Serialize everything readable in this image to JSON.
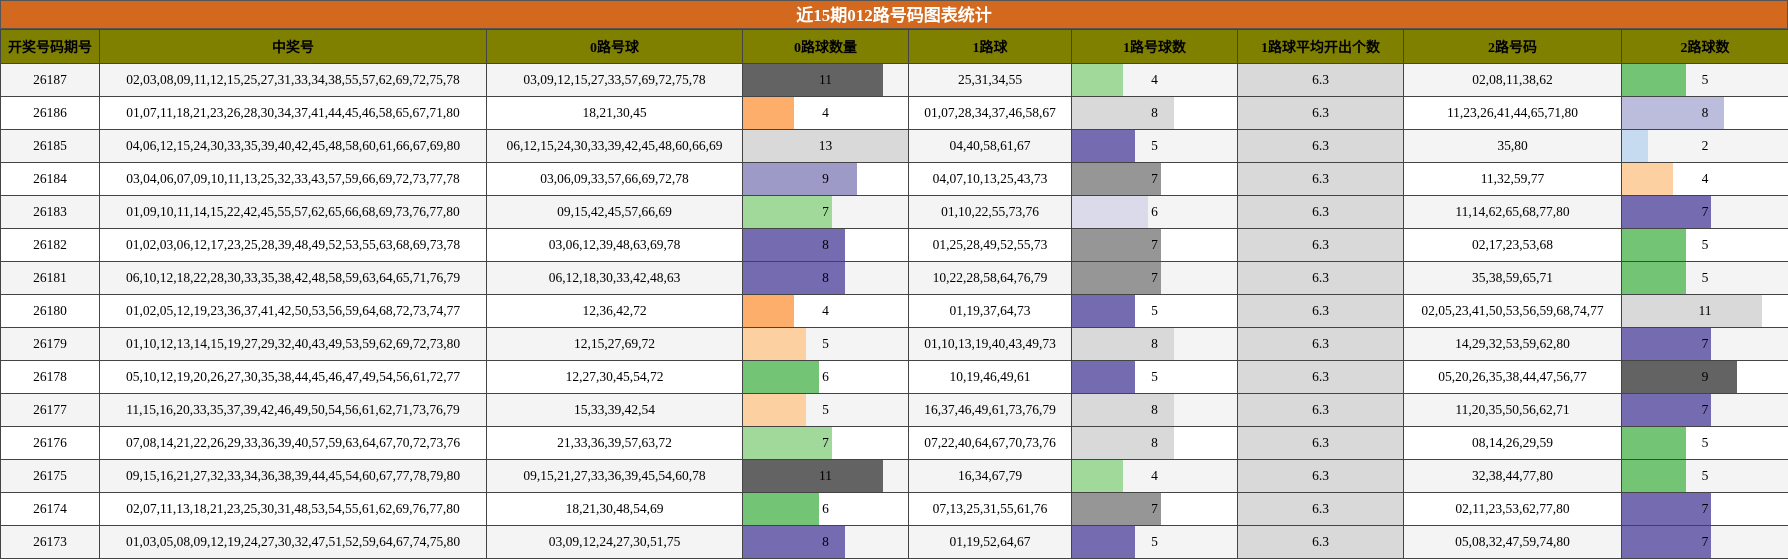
{
  "title": "近15期012路号码图表统计",
  "headers": [
    "开奖号码期号",
    "中奖号",
    "0路号球",
    "0路球数量",
    "1路球",
    "1路号球数",
    "1路球平均开出个数",
    "2路号码",
    "2路球数"
  ],
  "max_count": 13,
  "colors": {
    "header_bg": "#808000",
    "title_bg": "#d2691e",
    "avg_bg": "#d9d9d9",
    "count_2": "#c6dbef",
    "count_4_green": "#a1d99b",
    "count_4_orange": "#fdae6b",
    "count_5_peach": "#fdd0a2",
    "count_5_green": "#74c476",
    "count_5_purple": "#756bb1",
    "count_6_green": "#74c476",
    "count_6_lavender": "#dadaeb",
    "count_7_green": "#a1d99b",
    "count_7_gray": "#969696",
    "count_7_purple": "#756bb1",
    "count_8_purple": "#756bb1",
    "count_8_light_gray": "#d9d9d9",
    "count_8_lilac": "#bcbddc",
    "count_9_purple": "#9e9ac8",
    "count_9_dark": "#636363",
    "count_11_dark": "#636363",
    "count_11_light_gray": "#d9d9d9",
    "count_13": "#d9d9d9"
  },
  "rows": [
    {
      "period": "26187",
      "numbers": "02,03,08,09,11,12,15,25,27,31,33,34,38,55,57,62,69,72,75,78",
      "r0": "03,09,12,15,27,33,57,69,72,75,78",
      "r0_count": 11,
      "r0_color": "#636363",
      "r1": "25,31,34,55",
      "r1_count": 4,
      "r1_color": "#a1d99b",
      "avg": "6.3",
      "r2": "02,08,11,38,62",
      "r2_count": 5,
      "r2_color": "#74c476"
    },
    {
      "period": "26186",
      "numbers": "01,07,11,18,21,23,26,28,30,34,37,41,44,45,46,58,65,67,71,80",
      "r0": "18,21,30,45",
      "r0_count": 4,
      "r0_color": "#fdae6b",
      "r1": "01,07,28,34,37,46,58,67",
      "r1_count": 8,
      "r1_color": "#d9d9d9",
      "avg": "6.3",
      "r2": "11,23,26,41,44,65,71,80",
      "r2_count": 8,
      "r2_color": "#bcbddc"
    },
    {
      "period": "26185",
      "numbers": "04,06,12,15,24,30,33,35,39,40,42,45,48,58,60,61,66,67,69,80",
      "r0": "06,12,15,24,30,33,39,42,45,48,60,66,69",
      "r0_count": 13,
      "r0_color": "#d9d9d9",
      "r1": "04,40,58,61,67",
      "r1_count": 5,
      "r1_color": "#756bb1",
      "avg": "6.3",
      "r2": "35,80",
      "r2_count": 2,
      "r2_color": "#c6dbef"
    },
    {
      "period": "26184",
      "numbers": "03,04,06,07,09,10,11,13,25,32,33,43,57,59,66,69,72,73,77,78",
      "r0": "03,06,09,33,57,66,69,72,78",
      "r0_count": 9,
      "r0_color": "#9e9ac8",
      "r1": "04,07,10,13,25,43,73",
      "r1_count": 7,
      "r1_color": "#969696",
      "avg": "6.3",
      "r2": "11,32,59,77",
      "r2_count": 4,
      "r2_color": "#fdd0a2"
    },
    {
      "period": "26183",
      "numbers": "01,09,10,11,14,15,22,42,45,55,57,62,65,66,68,69,73,76,77,80",
      "r0": "09,15,42,45,57,66,69",
      "r0_count": 7,
      "r0_color": "#a1d99b",
      "r1": "01,10,22,55,73,76",
      "r1_count": 6,
      "r1_color": "#dadaeb",
      "avg": "6.3",
      "r2": "11,14,62,65,68,77,80",
      "r2_count": 7,
      "r2_color": "#756bb1"
    },
    {
      "period": "26182",
      "numbers": "01,02,03,06,12,17,23,25,28,39,48,49,52,53,55,63,68,69,73,78",
      "r0": "03,06,12,39,48,63,69,78",
      "r0_count": 8,
      "r0_color": "#756bb1",
      "r1": "01,25,28,49,52,55,73",
      "r1_count": 7,
      "r1_color": "#969696",
      "avg": "6.3",
      "r2": "02,17,23,53,68",
      "r2_count": 5,
      "r2_color": "#74c476"
    },
    {
      "period": "26181",
      "numbers": "06,10,12,18,22,28,30,33,35,38,42,48,58,59,63,64,65,71,76,79",
      "r0": "06,12,18,30,33,42,48,63",
      "r0_count": 8,
      "r0_color": "#756bb1",
      "r1": "10,22,28,58,64,76,79",
      "r1_count": 7,
      "r1_color": "#969696",
      "avg": "6.3",
      "r2": "35,38,59,65,71",
      "r2_count": 5,
      "r2_color": "#74c476"
    },
    {
      "period": "26180",
      "numbers": "01,02,05,12,19,23,36,37,41,42,50,53,56,59,64,68,72,73,74,77",
      "r0": "12,36,42,72",
      "r0_count": 4,
      "r0_color": "#fdae6b",
      "r1": "01,19,37,64,73",
      "r1_count": 5,
      "r1_color": "#756bb1",
      "avg": "6.3",
      "r2": "02,05,23,41,50,53,56,59,68,74,77",
      "r2_count": 11,
      "r2_color": "#d9d9d9"
    },
    {
      "period": "26179",
      "numbers": "01,10,12,13,14,15,19,27,29,32,40,43,49,53,59,62,69,72,73,80",
      "r0": "12,15,27,69,72",
      "r0_count": 5,
      "r0_color": "#fdd0a2",
      "r1": "01,10,13,19,40,43,49,73",
      "r1_count": 8,
      "r1_color": "#d9d9d9",
      "avg": "6.3",
      "r2": "14,29,32,53,59,62,80",
      "r2_count": 7,
      "r2_color": "#756bb1"
    },
    {
      "period": "26178",
      "numbers": "05,10,12,19,20,26,27,30,35,38,44,45,46,47,49,54,56,61,72,77",
      "r0": "12,27,30,45,54,72",
      "r0_count": 6,
      "r0_color": "#74c476",
      "r1": "10,19,46,49,61",
      "r1_count": 5,
      "r1_color": "#756bb1",
      "avg": "6.3",
      "r2": "05,20,26,35,38,44,47,56,77",
      "r2_count": 9,
      "r2_color": "#636363"
    },
    {
      "period": "26177",
      "numbers": "11,15,16,20,33,35,37,39,42,46,49,50,54,56,61,62,71,73,76,79",
      "r0": "15,33,39,42,54",
      "r0_count": 5,
      "r0_color": "#fdd0a2",
      "r1": "16,37,46,49,61,73,76,79",
      "r1_count": 8,
      "r1_color": "#d9d9d9",
      "avg": "6.3",
      "r2": "11,20,35,50,56,62,71",
      "r2_count": 7,
      "r2_color": "#756bb1"
    },
    {
      "period": "26176",
      "numbers": "07,08,14,21,22,26,29,33,36,39,40,57,59,63,64,67,70,72,73,76",
      "r0": "21,33,36,39,57,63,72",
      "r0_count": 7,
      "r0_color": "#a1d99b",
      "r1": "07,22,40,64,67,70,73,76",
      "r1_count": 8,
      "r1_color": "#d9d9d9",
      "avg": "6.3",
      "r2": "08,14,26,29,59",
      "r2_count": 5,
      "r2_color": "#74c476"
    },
    {
      "period": "26175",
      "numbers": "09,15,16,21,27,32,33,34,36,38,39,44,45,54,60,67,77,78,79,80",
      "r0": "09,15,21,27,33,36,39,45,54,60,78",
      "r0_count": 11,
      "r0_color": "#636363",
      "r1": "16,34,67,79",
      "r1_count": 4,
      "r1_color": "#a1d99b",
      "avg": "6.3",
      "r2": "32,38,44,77,80",
      "r2_count": 5,
      "r2_color": "#74c476"
    },
    {
      "period": "26174",
      "numbers": "02,07,11,13,18,21,23,25,30,31,48,53,54,55,61,62,69,76,77,80",
      "r0": "18,21,30,48,54,69",
      "r0_count": 6,
      "r0_color": "#74c476",
      "r1": "07,13,25,31,55,61,76",
      "r1_count": 7,
      "r1_color": "#969696",
      "avg": "6.3",
      "r2": "02,11,23,53,62,77,80",
      "r2_count": 7,
      "r2_color": "#756bb1"
    },
    {
      "period": "26173",
      "numbers": "01,03,05,08,09,12,19,24,27,30,32,47,51,52,59,64,67,74,75,80",
      "r0": "03,09,12,24,27,30,51,75",
      "r0_count": 8,
      "r0_color": "#756bb1",
      "r1": "01,19,52,64,67",
      "r1_count": 5,
      "r1_color": "#756bb1",
      "avg": "6.3",
      "r2": "05,08,32,47,59,74,80",
      "r2_count": 7,
      "r2_color": "#756bb1"
    }
  ]
}
